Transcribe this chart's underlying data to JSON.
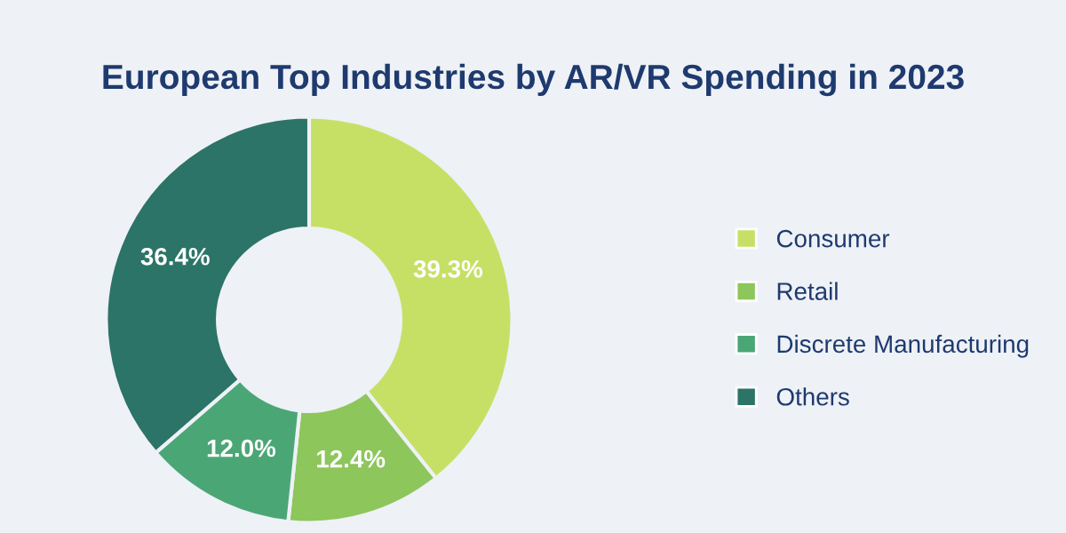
{
  "chart_data": {
    "type": "donut",
    "title": "European Top Industries by AR/VR Spending in 2023",
    "categories": [
      "Consumer",
      "Retail",
      "Discrete Manufacturing",
      "Others"
    ],
    "values": [
      39.3,
      12.4,
      12.0,
      36.4
    ],
    "value_labels": [
      "39.3%",
      "12.4%",
      "12.0%",
      "36.4%"
    ],
    "colors": [
      "#c6e066",
      "#8dc65b",
      "#4ba676",
      "#2b7467"
    ],
    "legend": "right"
  }
}
